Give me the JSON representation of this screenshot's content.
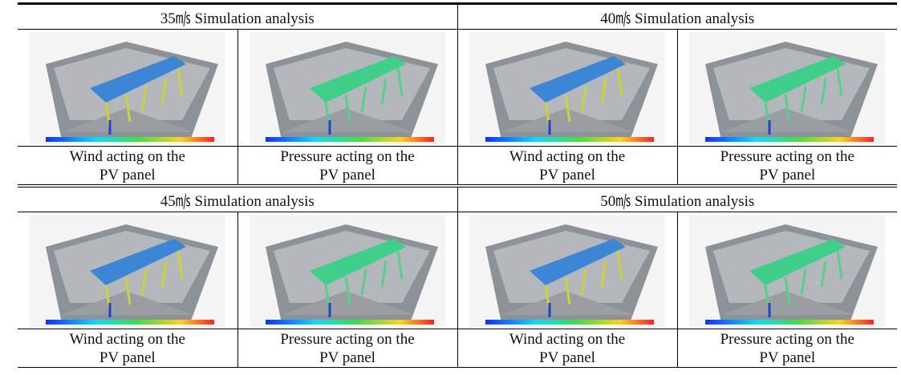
{
  "table": {
    "blocks": [
      {
        "headers": [
          "35㎧ Simulation analysis",
          "40㎧ Simulation analysis"
        ],
        "captions": [
          [
            "Wind acting on the",
            "PV panel"
          ],
          [
            "Pressure acting on the",
            "PV panel"
          ],
          [
            "Wind acting on the",
            "PV panel"
          ],
          [
            "Pressure acting on the",
            "PV panel"
          ]
        ]
      },
      {
        "headers": [
          "45㎧ Simulation analysis",
          "50㎧ Simulation analysis"
        ],
        "captions": [
          [
            "Wind acting on the",
            "PV panel"
          ],
          [
            "Pressure acting on the",
            "PV panel"
          ],
          [
            "Wind acting on the",
            "PV panel"
          ],
          [
            "Pressure acting on the",
            "PV panel"
          ]
        ]
      }
    ]
  }
}
